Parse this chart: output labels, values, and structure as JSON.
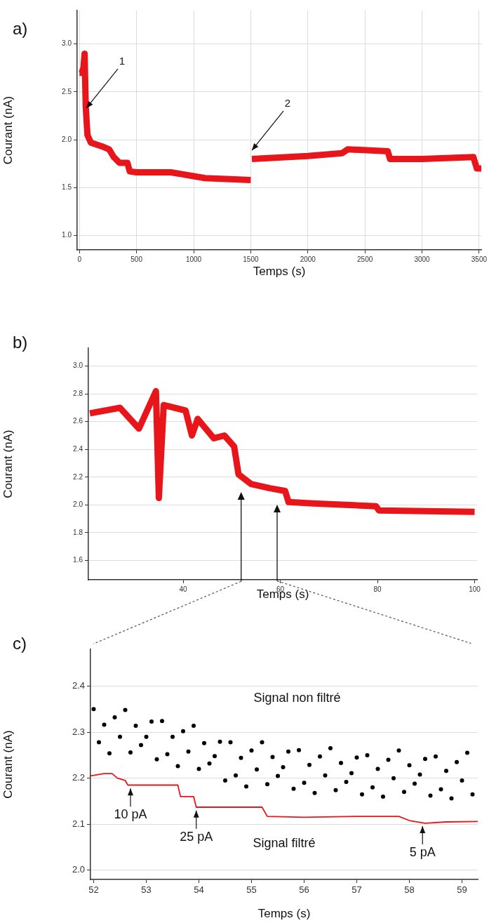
{
  "chart_data": [
    {
      "type": "line",
      "title": "a)",
      "xlabel": "Temps (s)",
      "ylabel": "Courant (nA)",
      "xlim": [
        -20,
        3520
      ],
      "ylim": [
        0.85,
        3.35
      ],
      "xticks": [
        0,
        500,
        1000,
        1500,
        2000,
        2500,
        3000,
        3500
      ],
      "yticks": [
        {
          "value": 1,
          "label": "1.0"
        },
        {
          "value": 1.5,
          "label": "1.5"
        },
        {
          "value": 2,
          "label": "2.0"
        },
        {
          "value": 2.5,
          "label": "2.5"
        },
        {
          "value": 3,
          "label": "3.0"
        }
      ],
      "grid": true,
      "annotations": [
        {
          "text": "1",
          "x": 60,
          "y": 2.3
        },
        {
          "text": "2",
          "x": 1510,
          "y": 1.86
        }
      ],
      "series": [
        {
          "color": "#e8151b",
          "x": [
            0,
            20,
            35,
            45,
            55,
            70,
            100,
            200,
            260,
            300,
            350,
            420,
            440,
            500,
            800,
            1000,
            1100,
            1500,
            1505,
            1510,
            2000,
            2300,
            2350,
            2700,
            2720,
            3000,
            3450,
            3480,
            3520
          ],
          "values": [
            2.7,
            2.7,
            2.75,
            2.9,
            2.35,
            2.05,
            1.97,
            1.93,
            1.9,
            1.82,
            1.76,
            1.76,
            1.67,
            1.66,
            1.66,
            1.62,
            1.6,
            1.58,
            null,
            1.8,
            1.83,
            1.86,
            1.9,
            1.88,
            1.8,
            1.8,
            1.82,
            1.7,
            1.7
          ]
        }
      ]
    },
    {
      "type": "line",
      "title": "b)",
      "xlabel": "Temps (s)",
      "ylabel": "Courant (nA)",
      "xlim": [
        20.5,
        100.5
      ],
      "ylim": [
        1.46,
        3.13
      ],
      "xticks": [
        40,
        60,
        80,
        100
      ],
      "yticks": [
        {
          "value": 1.6,
          "label": "1.6"
        },
        {
          "value": 1.8,
          "label": "1.8"
        },
        {
          "value": 2,
          "label": "2.0"
        },
        {
          "value": 2.2,
          "label": "2.2"
        },
        {
          "value": 2.4,
          "label": "2.4"
        },
        {
          "value": 2.6,
          "label": "2.6"
        },
        {
          "value": 2.8,
          "label": "2.8"
        },
        {
          "value": 3,
          "label": "3.0"
        }
      ],
      "grid": "y",
      "series": [
        {
          "color": "#e8151b",
          "x": [
            20.8,
            27,
            30.9,
            34.4,
            35,
            36,
            40.5,
            41.8,
            43,
            46.3,
            48.5,
            50.5,
            51.4,
            54,
            57.9,
            61,
            61.7,
            66.8,
            79.7,
            80.3,
            100
          ],
          "values": [
            2.66,
            2.7,
            2.55,
            2.82,
            2.05,
            2.72,
            2.68,
            2.5,
            2.62,
            2.48,
            2.5,
            2.42,
            2.22,
            2.15,
            2.12,
            2.1,
            2.02,
            2.01,
            1.99,
            1.96,
            1.95
          ]
        }
      ]
    },
    {
      "type": "line",
      "title": "c)",
      "xlabel": "Temps (s)",
      "ylabel": "Courant (nA)",
      "xlim": [
        51.94,
        59.3
      ],
      "ylim": [
        1.98,
        2.48
      ],
      "xticks": [
        52,
        53,
        54,
        55,
        56,
        57,
        58,
        59
      ],
      "yticks": [
        {
          "value": 2,
          "label": "2.0"
        },
        {
          "value": 2.1,
          "label": "2.1"
        },
        {
          "value": 2.2,
          "label": "2.2"
        },
        {
          "value": 2.3,
          "label": "2.3"
        },
        {
          "value": 2.4,
          "label": "2.4"
        }
      ],
      "grid": "y",
      "annotations": [
        {
          "text": "10 pA",
          "x": 52.7,
          "y": 2.184
        },
        {
          "text": "25 pA",
          "x": 53.95,
          "y": 2.136
        },
        {
          "text": "5 pA",
          "x": 58.25,
          "y": 2.102
        }
      ],
      "series": [
        {
          "name": "Signal non filtré",
          "type": "scatter",
          "color": "#000000",
          "x": [
            52.0,
            52.1,
            52.2,
            52.3,
            52.4,
            52.5,
            52.6,
            52.7,
            52.8,
            52.9,
            53.0,
            53.1,
            53.2,
            53.3,
            53.4,
            53.5,
            53.6,
            53.7,
            53.8,
            53.9,
            54.0,
            54.1,
            54.2,
            54.3,
            54.4,
            54.5,
            54.6,
            54.7,
            54.8,
            54.9,
            55.0,
            55.1,
            55.2,
            55.3,
            55.4,
            55.5,
            55.6,
            55.7,
            55.8,
            55.9,
            56.0,
            56.1,
            56.2,
            56.3,
            56.4,
            56.5,
            56.6,
            56.7,
            56.8,
            56.9,
            57.0,
            57.1,
            57.2,
            57.3,
            57.4,
            57.5,
            57.6,
            57.7,
            57.8,
            57.9,
            58.0,
            58.1,
            58.2,
            58.3,
            58.4,
            58.5,
            58.6,
            58.7,
            58.8,
            58.9,
            59.0,
            59.1,
            59.2
          ],
          "values": [
            2.35,
            2.278,
            2.316,
            2.254,
            2.332,
            2.29,
            2.348,
            2.256,
            2.314,
            2.272,
            2.29,
            2.323,
            2.241,
            2.324,
            2.252,
            2.29,
            2.226,
            2.302,
            2.258,
            2.314,
            2.22,
            2.276,
            2.232,
            2.248,
            2.279,
            2.195,
            2.278,
            2.206,
            2.244,
            2.182,
            2.26,
            2.219,
            2.278,
            2.187,
            2.246,
            2.205,
            2.224,
            2.258,
            2.177,
            2.261,
            2.19,
            2.229,
            2.168,
            2.247,
            2.206,
            2.265,
            2.174,
            2.233,
            2.192,
            2.211,
            2.245,
            2.165,
            2.25,
            2.18,
            2.22,
            2.16,
            2.24,
            2.2,
            2.26,
            2.17,
            2.228,
            2.188,
            2.208,
            2.242,
            2.162,
            2.247,
            2.176,
            2.216,
            2.156,
            2.235,
            2.195,
            2.255,
            2.165
          ]
        },
        {
          "name": "Signal filtré",
          "type": "line",
          "color": "#e8151b",
          "x": [
            51.94,
            52.2,
            52.35,
            52.45,
            52.6,
            52.65,
            53.6,
            53.65,
            53.9,
            53.95,
            55.2,
            55.3,
            56,
            57,
            57.8,
            58,
            58.3,
            58.7,
            59.3
          ],
          "values": [
            2.205,
            2.21,
            2.21,
            2.2,
            2.195,
            2.185,
            2.185,
            2.16,
            2.16,
            2.137,
            2.137,
            2.117,
            2.115,
            2.117,
            2.117,
            2.108,
            2.102,
            2.105,
            2.106
          ]
        }
      ]
    }
  ]
}
